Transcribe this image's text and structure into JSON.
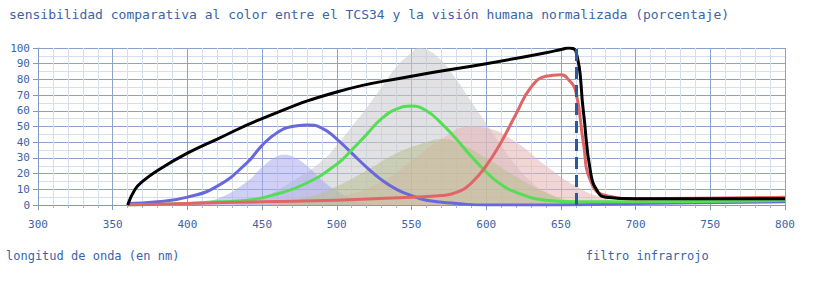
{
  "chart_data": {
    "type": "line",
    "title": "sensibilidad comparativa al color entre el TCS34 y la visión humana normalizada (porcentaje)",
    "x_label": "longitud de onda (en nm)",
    "xlim": [
      300,
      800
    ],
    "xticks": [
      300,
      350,
      400,
      450,
      500,
      550,
      600,
      650,
      700,
      750,
      800
    ],
    "ylim": [
      0,
      100
    ],
    "yticks": [
      0,
      10,
      20,
      30,
      40,
      50,
      60,
      70,
      80,
      90,
      100
    ],
    "grid": true,
    "annotations": [
      {
        "text": "filtro infrarrojo",
        "x": 660,
        "line_style": "dashed",
        "color": "#2a5a9a"
      }
    ],
    "series": [
      {
        "type": "area",
        "color": "#c8c8cc",
        "x": [
          430,
          450,
          470,
          490,
          500,
          510,
          520,
          530,
          540,
          550,
          555,
          560,
          570,
          580,
          590,
          600,
          610,
          620,
          630,
          640,
          650,
          660,
          670
        ],
        "values": [
          0,
          5,
          15,
          28,
          38,
          50,
          62,
          75,
          88,
          97,
          100,
          99,
          92,
          80,
          66,
          52,
          38,
          25,
          15,
          8,
          4,
          2,
          0
        ]
      },
      {
        "type": "area",
        "color": "#aaaaee",
        "x": [
          400,
          420,
          440,
          450,
          460,
          465,
          470,
          480,
          490,
          500,
          510,
          520,
          530
        ],
        "values": [
          0,
          4,
          15,
          24,
          31,
          32,
          31,
          25,
          16,
          9,
          4,
          1,
          0
        ]
      },
      {
        "type": "area",
        "color": "#e8b4b4",
        "x": [
          450,
          500,
          530,
          550,
          570,
          590,
          600,
          620,
          640,
          660,
          680,
          700
        ],
        "values": [
          0,
          5,
          15,
          28,
          42,
          50,
          49,
          40,
          25,
          12,
          4,
          0
        ]
      },
      {
        "type": "area",
        "color": "#b8c090",
        "x": [
          450,
          480,
          500,
          520,
          540,
          560,
          570,
          580,
          600,
          620,
          640,
          660,
          680
        ],
        "values": [
          0,
          5,
          12,
          22,
          33,
          40,
          42,
          40,
          30,
          18,
          8,
          2,
          0
        ]
      },
      {
        "type": "line",
        "color": "#6868dc",
        "x": [
          360,
          380,
          400,
          420,
          440,
          450,
          460,
          470,
          480,
          490,
          500,
          510,
          520,
          530,
          540,
          550,
          560,
          580,
          600,
          650,
          700,
          800
        ],
        "values": [
          1,
          2,
          5,
          12,
          27,
          38,
          46,
          50,
          51,
          49,
          42,
          33,
          24,
          16,
          10,
          6,
          3,
          1,
          0,
          0,
          1,
          2
        ]
      },
      {
        "type": "line",
        "color": "#55dd55",
        "x": [
          360,
          400,
          420,
          440,
          460,
          480,
          500,
          510,
          520,
          530,
          540,
          550,
          560,
          570,
          580,
          590,
          600,
          610,
          620,
          640,
          660,
          700,
          800
        ],
        "values": [
          0,
          1,
          2,
          3,
          7,
          14,
          26,
          35,
          45,
          55,
          61,
          63,
          60,
          52,
          42,
          31,
          21,
          13,
          8,
          3,
          2,
          2,
          3
        ]
      },
      {
        "type": "line",
        "color": "#e06666",
        "x": [
          360,
          400,
          450,
          500,
          550,
          570,
          580,
          590,
          600,
          610,
          620,
          630,
          640,
          650,
          655,
          660,
          665,
          670,
          680,
          700,
          800
        ],
        "values": [
          0,
          1,
          2,
          3,
          5,
          6,
          8,
          14,
          25,
          40,
          58,
          75,
          82,
          83,
          80,
          72,
          40,
          15,
          6,
          4,
          5
        ]
      },
      {
        "type": "line",
        "color": "#000000",
        "x": [
          360,
          365,
          370,
          380,
          400,
          420,
          450,
          500,
          550,
          600,
          640,
          650,
          655,
          660,
          665,
          670,
          675,
          680,
          700,
          750,
          800
        ],
        "values": [
          0,
          10,
          15,
          22,
          33,
          42,
          55,
          72,
          82,
          90,
          97,
          99,
          100,
          98,
          60,
          20,
          8,
          5,
          4,
          4,
          4
        ]
      }
    ]
  }
}
